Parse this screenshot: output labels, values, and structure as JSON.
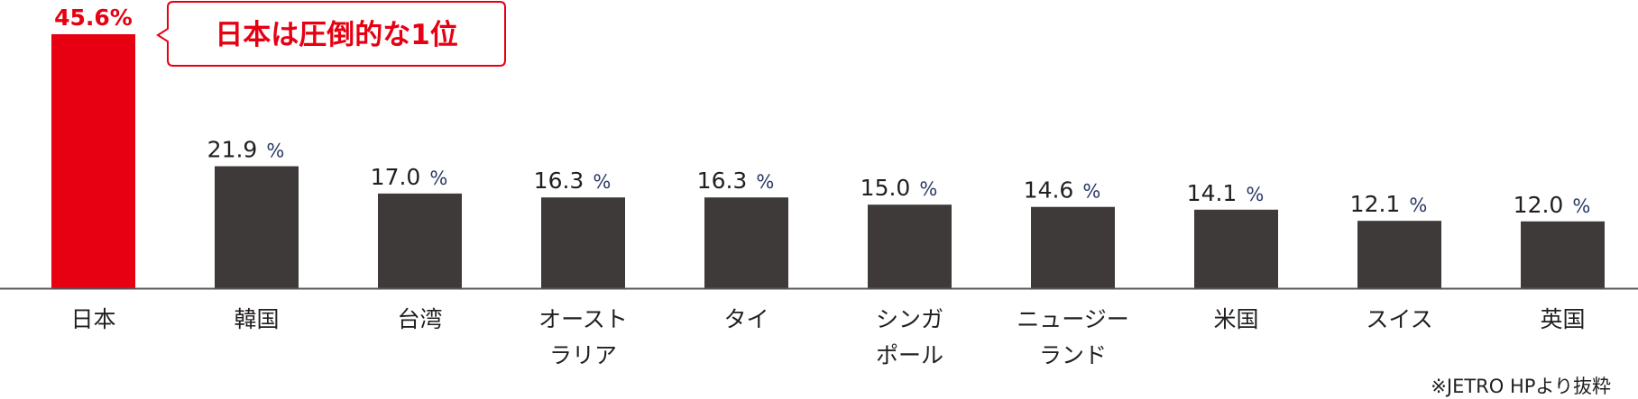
{
  "chart_data": {
    "type": "bar",
    "categories": [
      [
        "日本"
      ],
      [
        "韓国"
      ],
      [
        "台湾"
      ],
      [
        "オースト",
        "ラリア"
      ],
      [
        "タイ"
      ],
      [
        "シンガ",
        "ポール"
      ],
      [
        "ニュージー",
        "ランド"
      ],
      [
        "米国"
      ],
      [
        "スイス"
      ],
      [
        "英国"
      ]
    ],
    "values": [
      45.6,
      21.9,
      17.0,
      16.3,
      16.3,
      15.0,
      14.6,
      14.1,
      12.1,
      12.0
    ],
    "value_labels": [
      "45.6",
      "21.9",
      "17.0",
      "16.3",
      "16.3",
      "15.0",
      "14.6",
      "14.1",
      "12.1",
      "12.0"
    ],
    "unit": "%",
    "highlight_index": 0,
    "colors": {
      "highlight": "#e60012",
      "default": "#3e3a39",
      "axis": "#595757"
    },
    "ylim": [
      0,
      45.6
    ],
    "grid": false,
    "legend": "none",
    "callout": "日本は圧倒的な1位",
    "note": "※JETRO HPより抜粋"
  }
}
